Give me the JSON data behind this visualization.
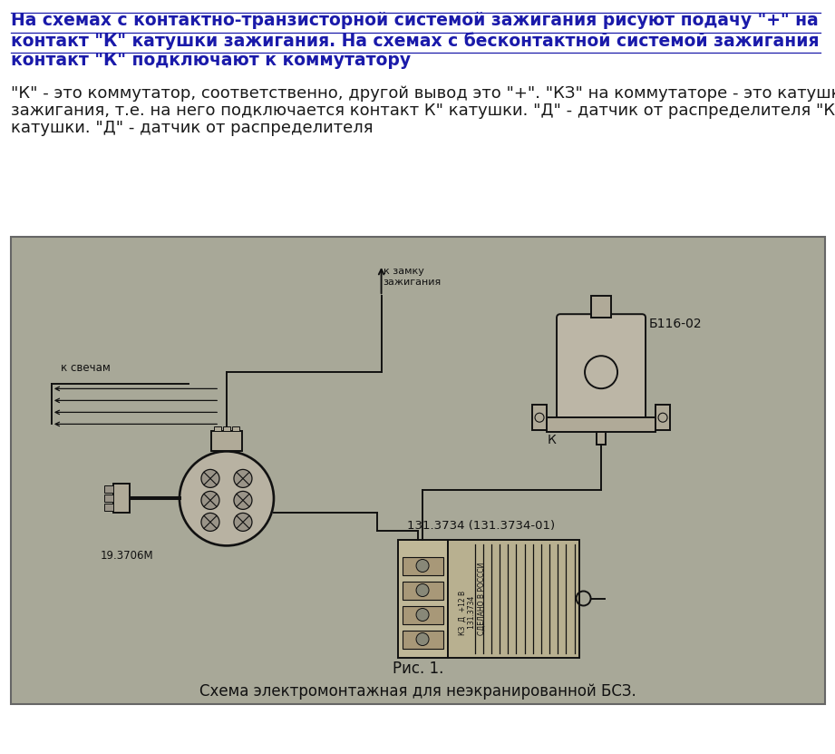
{
  "background_color": "#ffffff",
  "title_lines": [
    "На схемах с контактно-транзисторной системой зажигания рисуют подачу \"+\" на",
    "контакт \"К\" катушки зажигания. На схемах с бесконтактной системой зажигания",
    "контакт \"К\" подключают к коммутатору"
  ],
  "title_color": "#1a1aaa",
  "title_fontsize": 13.5,
  "body_lines": [
    "\"К\" - это коммутатор, соответственно, другой вывод это \"+\". \"КЗ\" на коммутаторе - это катушка",
    "зажигания, т.е. на него подключается контакт К\" катушки. \"Д\" - датчик от распределителя \"К\"",
    "катушки. \"Д\" - датчик от распределителя"
  ],
  "body_color": "#1a1a1a",
  "body_fontsize": 13.0,
  "fig_width": 9.21,
  "fig_height": 8.31,
  "caption_line1": "Рис. 1.",
  "caption_line2": "Схема электромонтажная для неэкранированной БСЗ.",
  "caption_color": "#111111",
  "caption_fontsize": 12.0,
  "label_zamok": "к замку\nзажигания",
  "label_svechiam": "к свечам",
  "label_b116": "Б116-02",
  "label_131": "131.3734 (131.3734-01)",
  "label_19": "19.3706М",
  "label_k": "К",
  "photo_facecolor": "#a8a898",
  "photo_edgecolor": "#666666",
  "diagram_color": "#111111",
  "diagram_bg": "#b0aa98"
}
